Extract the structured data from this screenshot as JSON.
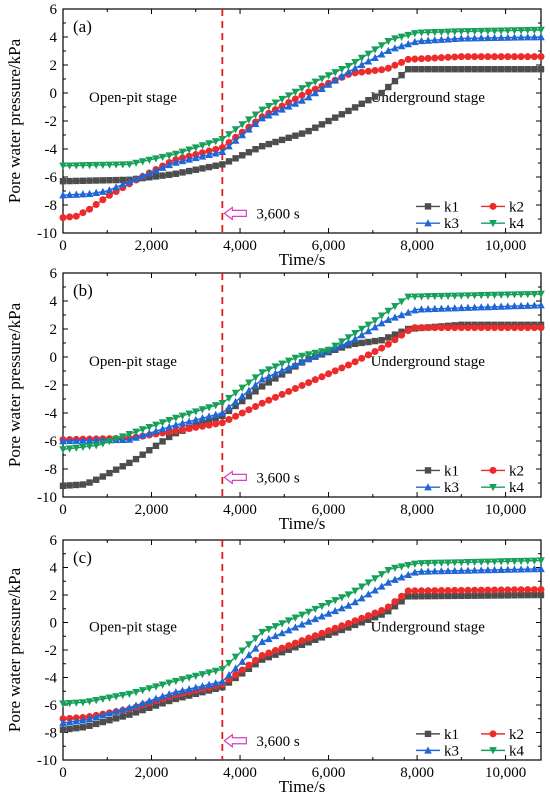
{
  "figure": {
    "ylabel": "Pore water pressure/kPa",
    "xlabel": "Time/s",
    "annotation": "3,600 s",
    "left_stage": "Open-pit stage",
    "right_stage": "Underground stage",
    "series_names": [
      "k1",
      "k2",
      "k3",
      "k4"
    ],
    "series_colors": [
      "#4d4d4d",
      "#ee2b2b",
      "#1f66d6",
      "#16a05a"
    ],
    "series_markers": [
      "square",
      "circle",
      "triangle-up",
      "triangle-down"
    ],
    "divider_color": "#e31a1c",
    "annotation_color": "#d63fbf"
  },
  "chart_data": [
    {
      "panel": "(a)",
      "type": "line",
      "xlabel": "Time/s",
      "ylabel": "Pore water pressure/kPa",
      "xlim": [
        0,
        10800
      ],
      "ylim": [
        -10,
        6
      ],
      "xticks": [
        "0",
        "2,000",
        "4,000",
        "6,000",
        "8,000",
        "10,000"
      ],
      "yticks": [
        "-10",
        "-8",
        "-6",
        "-4",
        "-2",
        "0",
        "2",
        "4",
        "6"
      ],
      "vline": 3600,
      "grid": false,
      "legend": "bottom-right",
      "series": [
        {
          "name": "k1",
          "points": [
            [
              0,
              -6.3
            ],
            [
              1500,
              -6.2
            ],
            [
              2500,
              -5.8
            ],
            [
              3600,
              -5.1
            ],
            [
              4500,
              -3.8
            ],
            [
              5500,
              -2.8
            ],
            [
              6500,
              -1.2
            ],
            [
              7200,
              0.0
            ],
            [
              7800,
              1.7
            ],
            [
              10800,
              1.7
            ]
          ]
        },
        {
          "name": "k2",
          "points": [
            [
              0,
              -8.9
            ],
            [
              300,
              -8.8
            ],
            [
              600,
              -8.3
            ],
            [
              1000,
              -7.4
            ],
            [
              1600,
              -6.3
            ],
            [
              2500,
              -4.8
            ],
            [
              3600,
              -3.9
            ],
            [
              4500,
              -1.7
            ],
            [
              5500,
              0.0
            ],
            [
              6500,
              1.4
            ],
            [
              7300,
              1.7
            ],
            [
              7800,
              2.4
            ],
            [
              9000,
              2.6
            ],
            [
              10800,
              2.6
            ]
          ]
        },
        {
          "name": "k3",
          "points": [
            [
              0,
              -7.3
            ],
            [
              600,
              -7.2
            ],
            [
              1000,
              -7.0
            ],
            [
              1600,
              -6.2
            ],
            [
              2500,
              -5.0
            ],
            [
              3600,
              -4.2
            ],
            [
              4500,
              -1.8
            ],
            [
              5500,
              -0.4
            ],
            [
              6500,
              1.6
            ],
            [
              7400,
              3.1
            ],
            [
              8000,
              3.7
            ],
            [
              9000,
              3.9
            ],
            [
              10800,
              4.0
            ]
          ]
        },
        {
          "name": "k4",
          "points": [
            [
              0,
              -5.2
            ],
            [
              1500,
              -5.1
            ],
            [
              2500,
              -4.4
            ],
            [
              3600,
              -3.3
            ],
            [
              4500,
              -1.2
            ],
            [
              5500,
              0.5
            ],
            [
              6500,
              2.0
            ],
            [
              7400,
              3.8
            ],
            [
              8000,
              4.3
            ],
            [
              9000,
              4.4
            ],
            [
              10800,
              4.5
            ]
          ]
        }
      ]
    },
    {
      "panel": "(b)",
      "type": "line",
      "xlabel": "Time/s",
      "ylabel": "Pore water pressure/kPa",
      "xlim": [
        0,
        10800
      ],
      "ylim": [
        -10,
        6
      ],
      "xticks": [
        "0",
        "2,000",
        "4,000",
        "6,000",
        "8,000",
        "10,000"
      ],
      "yticks": [
        "-10",
        "-8",
        "-6",
        "-4",
        "-2",
        "0",
        "2",
        "4",
        "6"
      ],
      "vline": 3600,
      "grid": false,
      "legend": "bottom-right",
      "series": [
        {
          "name": "k1",
          "points": [
            [
              0,
              -9.2
            ],
            [
              500,
              -9.1
            ],
            [
              800,
              -8.7
            ],
            [
              1600,
              -7.4
            ],
            [
              2500,
              -5.5
            ],
            [
              3600,
              -4.2
            ],
            [
              4500,
              -2.1
            ],
            [
              5500,
              -0.2
            ],
            [
              6500,
              0.9
            ],
            [
              7200,
              1.2
            ],
            [
              7800,
              2.0
            ],
            [
              9000,
              2.3
            ],
            [
              10800,
              2.3
            ]
          ]
        },
        {
          "name": "k2",
          "points": [
            [
              0,
              -5.9
            ],
            [
              1500,
              -5.8
            ],
            [
              2500,
              -5.3
            ],
            [
              3600,
              -4.7
            ],
            [
              4500,
              -3.3
            ],
            [
              5500,
              -1.9
            ],
            [
              6500,
              -0.5
            ],
            [
              7300,
              0.8
            ],
            [
              7900,
              2.1
            ],
            [
              10800,
              2.1
            ]
          ]
        },
        {
          "name": "k3",
          "points": [
            [
              0,
              -6.0
            ],
            [
              1500,
              -5.9
            ],
            [
              2500,
              -4.9
            ],
            [
              3600,
              -4.0
            ],
            [
              4500,
              -1.6
            ],
            [
              5500,
              -0.2
            ],
            [
              6500,
              1.1
            ],
            [
              7300,
              2.6
            ],
            [
              8000,
              3.4
            ],
            [
              10800,
              3.7
            ]
          ]
        },
        {
          "name": "k4",
          "points": [
            [
              0,
              -6.6
            ],
            [
              800,
              -6.3
            ],
            [
              1600,
              -5.4
            ],
            [
              2500,
              -4.4
            ],
            [
              3600,
              -3.3
            ],
            [
              4500,
              -1.1
            ],
            [
              5300,
              0.0
            ],
            [
              6000,
              0.5
            ],
            [
              7000,
              2.5
            ],
            [
              7800,
              4.3
            ],
            [
              10800,
              4.5
            ]
          ]
        }
      ]
    },
    {
      "panel": "(c)",
      "type": "line",
      "xlabel": "Time/s",
      "ylabel": "Pore water pressure/kPa",
      "xlim": [
        0,
        10800
      ],
      "ylim": [
        -10,
        6
      ],
      "xticks": [
        "0",
        "2,000",
        "4,000",
        "6,000",
        "8,000",
        "10,000"
      ],
      "yticks": [
        "-10",
        "-8",
        "-6",
        "-4",
        "-2",
        "0",
        "2",
        "4",
        "6"
      ],
      "vline": 3600,
      "grid": false,
      "legend": "bottom-right",
      "series": [
        {
          "name": "k1",
          "points": [
            [
              0,
              -7.8
            ],
            [
              500,
              -7.6
            ],
            [
              1500,
              -6.7
            ],
            [
              2500,
              -5.6
            ],
            [
              3600,
              -4.7
            ],
            [
              4500,
              -2.7
            ],
            [
              5500,
              -1.5
            ],
            [
              6500,
              -0.3
            ],
            [
              7300,
              0.7
            ],
            [
              7800,
              1.9
            ],
            [
              10800,
              2.0
            ]
          ]
        },
        {
          "name": "k2",
          "points": [
            [
              0,
              -7.0
            ],
            [
              500,
              -6.9
            ],
            [
              1500,
              -6.3
            ],
            [
              2500,
              -5.3
            ],
            [
              3600,
              -4.5
            ],
            [
              4500,
              -2.4
            ],
            [
              5500,
              -1.2
            ],
            [
              6500,
              0.0
            ],
            [
              7300,
              1.0
            ],
            [
              7800,
              2.3
            ],
            [
              10800,
              2.4
            ]
          ]
        },
        {
          "name": "k3",
          "points": [
            [
              0,
              -7.3
            ],
            [
              500,
              -7.1
            ],
            [
              1500,
              -6.2
            ],
            [
              2500,
              -5.1
            ],
            [
              3600,
              -4.3
            ],
            [
              4500,
              -1.4
            ],
            [
              5500,
              0.0
            ],
            [
              6500,
              1.3
            ],
            [
              7400,
              3.0
            ],
            [
              8000,
              3.7
            ],
            [
              10800,
              3.9
            ]
          ]
        },
        {
          "name": "k4",
          "points": [
            [
              0,
              -5.9
            ],
            [
              500,
              -5.8
            ],
            [
              1500,
              -5.2
            ],
            [
              2500,
              -4.3
            ],
            [
              3600,
              -3.4
            ],
            [
              4500,
              -0.7
            ],
            [
              5500,
              0.7
            ],
            [
              6500,
              2.1
            ],
            [
              7400,
              3.9
            ],
            [
              8000,
              4.3
            ],
            [
              10800,
              4.5
            ]
          ]
        }
      ]
    }
  ]
}
